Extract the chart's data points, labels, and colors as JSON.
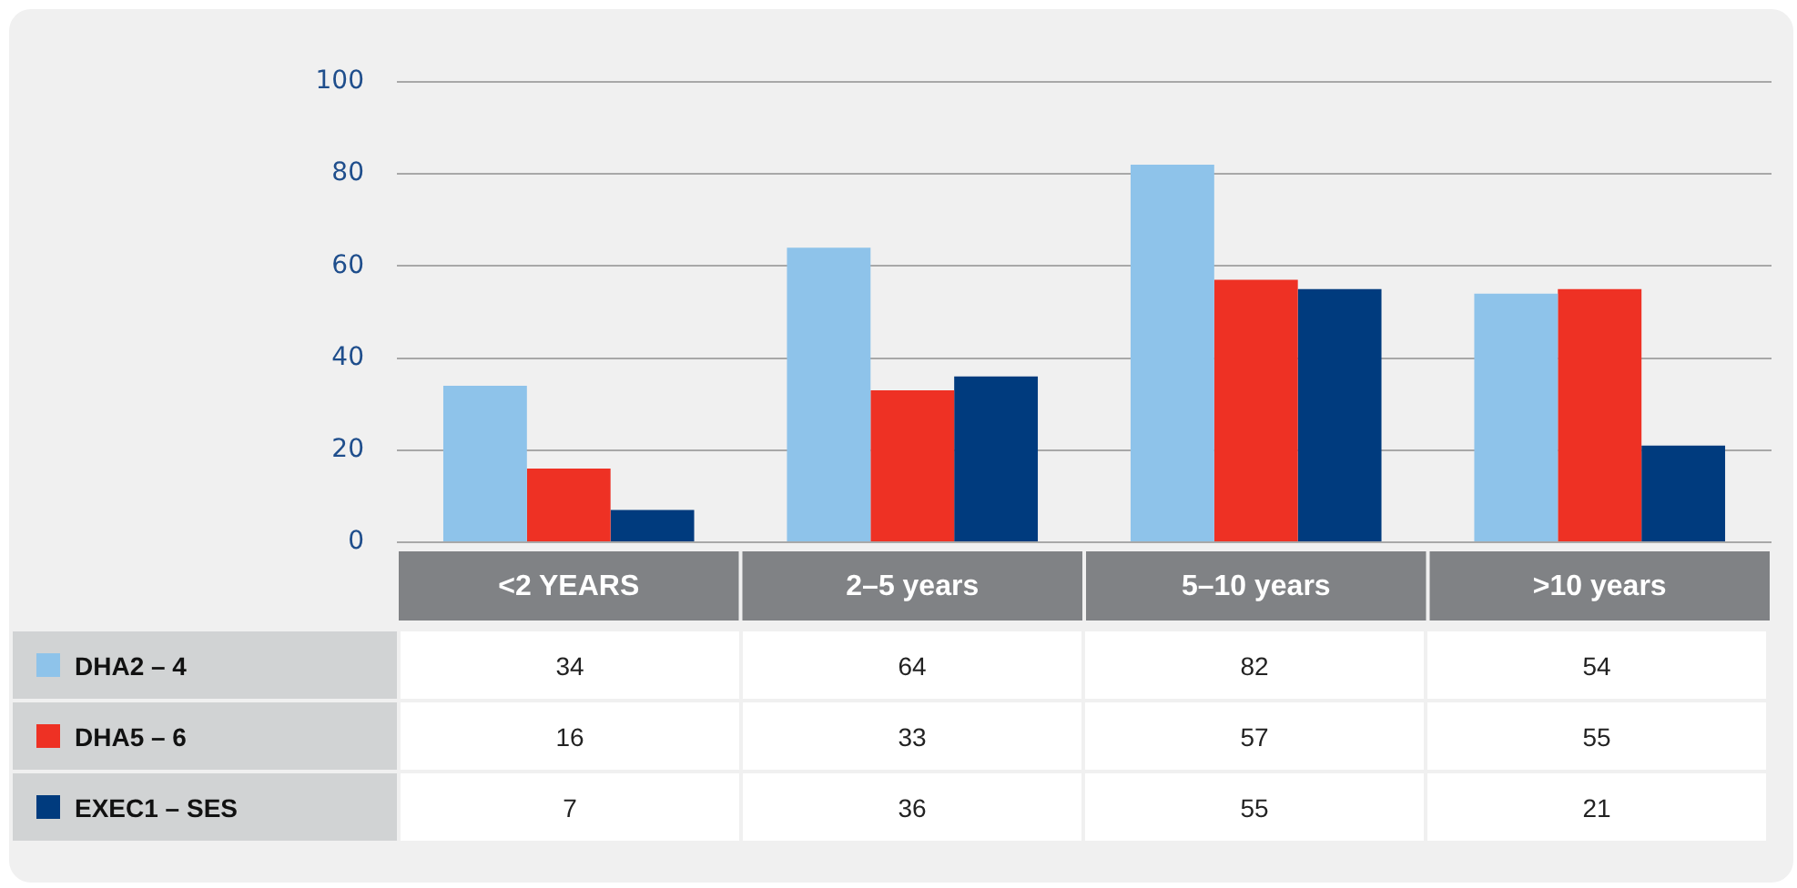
{
  "chart_data": {
    "type": "bar",
    "categories": [
      "<2 YEARS",
      "2–5 years",
      "5–10 years",
      ">10 years"
    ],
    "series": [
      {
        "name": "DHA2 – 4",
        "color": "#8ec3ea",
        "values": [
          34,
          64,
          82,
          54
        ]
      },
      {
        "name": "DHA5 – 6",
        "color": "#ee3124",
        "values": [
          16,
          33,
          57,
          55
        ]
      },
      {
        "name": "EXEC1 – SES",
        "color": "#003b7e",
        "values": [
          7,
          36,
          55,
          21
        ]
      }
    ],
    "ylim": [
      0,
      100
    ],
    "yticks": [
      0,
      20,
      40,
      60,
      80,
      100
    ],
    "grid": "y",
    "legend": "bottom",
    "data_labels": true
  }
}
